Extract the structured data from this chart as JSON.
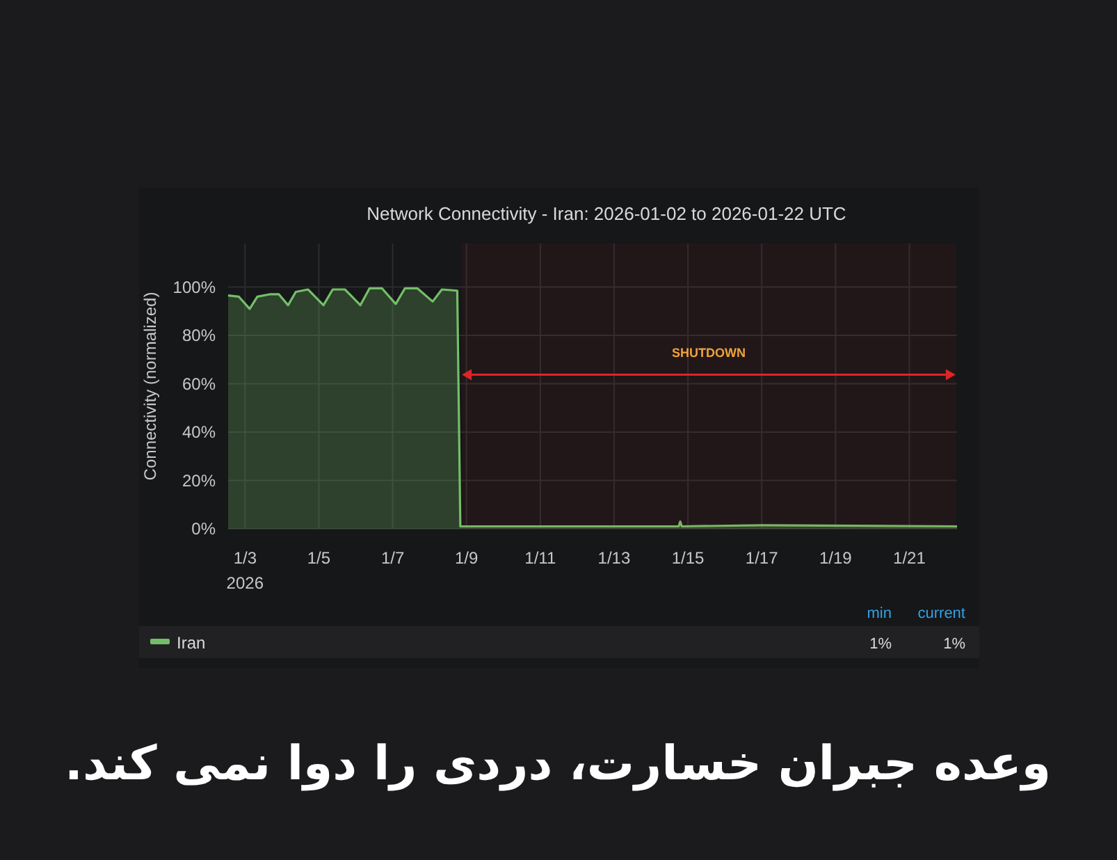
{
  "chart_data": {
    "type": "area",
    "title": "Network Connectivity - Iran: 2026-01-02 to 2026-01-22 UTC",
    "ylabel": "Connectivity (normalized)",
    "x": [
      "2026-01-02T13:00",
      "2026-01-02T20:00",
      "2026-01-03T03:00",
      "2026-01-03T08:00",
      "2026-01-03T16:00",
      "2026-01-03T22:00",
      "2026-01-04T04:00",
      "2026-01-04T09:00",
      "2026-01-04T17:00",
      "2026-01-05T03:00",
      "2026-01-05T09:00",
      "2026-01-05T17:00",
      "2026-01-06T03:00",
      "2026-01-06T09:00",
      "2026-01-06T17:00",
      "2026-01-07T02:00",
      "2026-01-07T08:00",
      "2026-01-07T16:00",
      "2026-01-08T02:00",
      "2026-01-08T08:00",
      "2026-01-08T18:00",
      "2026-01-08T20:00",
      "2026-01-14T18:00",
      "2026-01-14T19:00",
      "2026-01-14T20:00",
      "2026-01-17T00:00",
      "2026-01-22T07:00"
    ],
    "series": [
      {
        "name": "Iran",
        "color": "#73bf69",
        "values": [
          96.5,
          96,
          91,
          96,
          97,
          97,
          92.5,
          98,
          99,
          92.5,
          99,
          99,
          92.5,
          99.5,
          99.5,
          93,
          99.5,
          99.5,
          94,
          99,
          98.5,
          1,
          1,
          3,
          1,
          1.5,
          1
        ]
      }
    ],
    "xlim": [
      "2026-01-02T13:00",
      "2026-01-22T07:00"
    ],
    "xticks": [
      {
        "value": "2026-01-03",
        "label": "1/3\n2026"
      },
      {
        "value": "2026-01-05",
        "label": "1/5"
      },
      {
        "value": "2026-01-07",
        "label": "1/7"
      },
      {
        "value": "2026-01-09",
        "label": "1/9"
      },
      {
        "value": "2026-01-11",
        "label": "1/11"
      },
      {
        "value": "2026-01-13",
        "label": "1/13"
      },
      {
        "value": "2026-01-15",
        "label": "1/15"
      },
      {
        "value": "2026-01-17",
        "label": "1/17"
      },
      {
        "value": "2026-01-19",
        "label": "1/19"
      },
      {
        "value": "2026-01-21",
        "label": "1/21"
      }
    ],
    "ylim": [
      0,
      118
    ],
    "yticks": [
      {
        "value": 0,
        "label": "0%"
      },
      {
        "value": 20,
        "label": "20%"
      },
      {
        "value": 40,
        "label": "40%"
      },
      {
        "value": 60,
        "label": "60%"
      },
      {
        "value": 80,
        "label": "80%"
      },
      {
        "value": 100,
        "label": "100%"
      }
    ],
    "bands": [
      {
        "axis": "x",
        "from": "2026-01-08T21:00",
        "to": "2026-01-22T06:00",
        "label": "SHUTDOWN",
        "color": "#e02424"
      }
    ],
    "annotations": [
      "min",
      "current",
      "1%",
      "1%",
      "وعده جبران خسارت، دردی را دوا نمی کند."
    ],
    "grid": true,
    "legend": "bottom"
  }
}
